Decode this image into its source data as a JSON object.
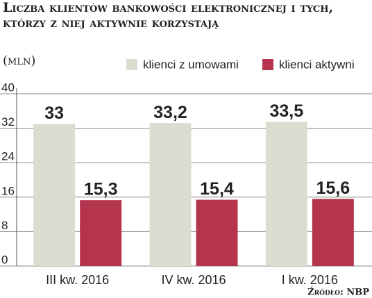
{
  "chart_data": {
    "type": "bar",
    "title": "Liczba klientów bankowości elektronicznej i tych, którzy z niej aktywnie korzystają",
    "subtitle": "(mln)",
    "source": "Źródło: NBP",
    "categories": [
      "III kw. 2016",
      "IV kw. 2016",
      "I kw. 2016"
    ],
    "series": [
      {
        "name": "klienci z umowami",
        "color": "#dcdcd0",
        "values": [
          33,
          33.2,
          33.5
        ],
        "value_labels": [
          "33",
          "33,2",
          "33,5"
        ]
      },
      {
        "name": "klienci aktywni",
        "color": "#b5354f",
        "values": [
          15.3,
          15.4,
          15.6
        ],
        "value_labels": [
          "15,3",
          "15,4",
          "15,6"
        ]
      }
    ],
    "ylim": [
      0,
      40
    ],
    "yticks": [
      0,
      8,
      16,
      24,
      32,
      40
    ],
    "grid": true
  }
}
